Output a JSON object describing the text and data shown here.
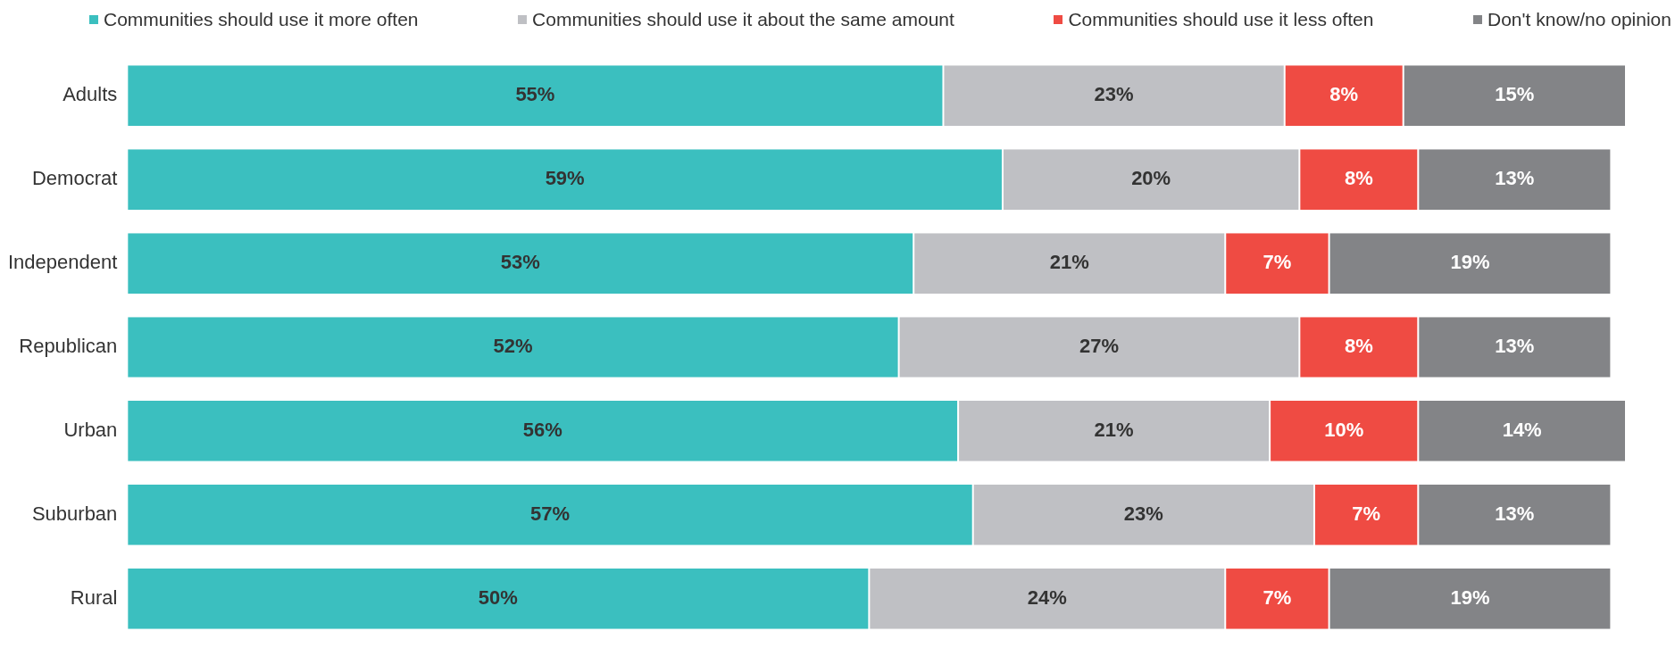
{
  "chart_data": {
    "type": "bar",
    "orientation": "horizontal",
    "stacked": true,
    "legend": "top",
    "categories": [
      "Adults",
      "Democrat",
      "Independent",
      "Republican",
      "Urban",
      "Suburban",
      "Rural"
    ],
    "series": [
      {
        "name": "Communities should use it more often",
        "color": "#3bbfbf",
        "values": [
          55,
          59,
          53,
          52,
          56,
          57,
          50
        ],
        "value_labels": [
          "55%",
          "59%",
          "53%",
          "52%",
          "56%",
          "57%",
          "50%"
        ]
      },
      {
        "name": "Communities should use it about the same amount",
        "color": "#bfc0c4",
        "values": [
          23,
          20,
          21,
          27,
          21,
          23,
          24
        ],
        "value_labels": [
          "23%",
          "20%",
          "21%",
          "27%",
          "21%",
          "23%",
          "24%"
        ]
      },
      {
        "name": "Communities should use it less often",
        "color": "#ef4b43",
        "values": [
          8,
          8,
          7,
          8,
          10,
          7,
          7
        ],
        "value_labels": [
          "8%",
          "8%",
          "7%",
          "8%",
          "10%",
          "7%",
          "7%"
        ]
      },
      {
        "name": "Don't know/no opinion",
        "color": "#838487",
        "values": [
          15,
          13,
          19,
          13,
          14,
          13,
          19
        ],
        "value_labels": [
          "15%",
          "13%",
          "19%",
          "13%",
          "14%",
          "13%",
          "19%"
        ]
      }
    ]
  }
}
